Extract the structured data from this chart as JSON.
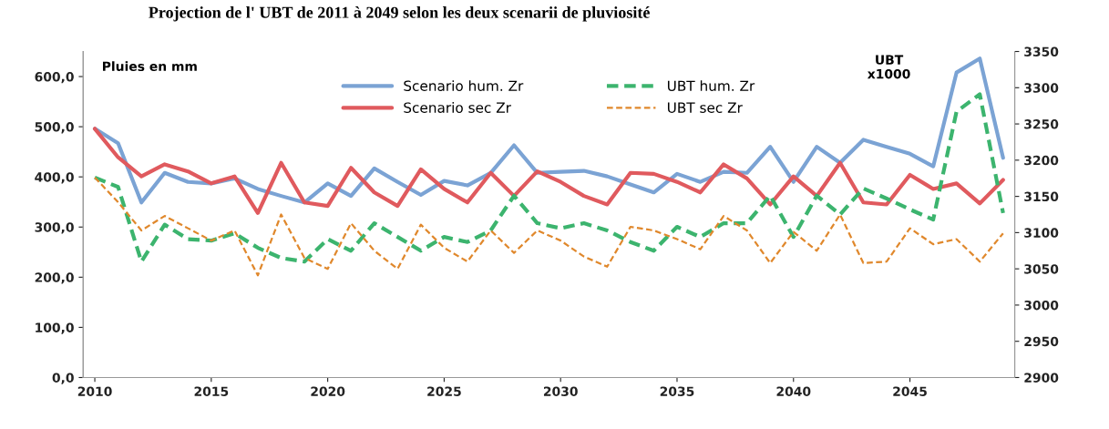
{
  "chart_data": {
    "type": "line",
    "title": "Projection de l' UBT de 2011 à 2049 selon les deux scenarii de pluviosité",
    "ylabel": "Pluies en mm",
    "y2label": "UBT\nx1000",
    "x": [
      2010,
      2011,
      2012,
      2013,
      2014,
      2015,
      2016,
      2017,
      2018,
      2019,
      2020,
      2021,
      2022,
      2023,
      2024,
      2025,
      2026,
      2027,
      2028,
      2029,
      2030,
      2031,
      2032,
      2033,
      2034,
      2035,
      2036,
      2037,
      2038,
      2039,
      2040,
      2041,
      2042,
      2043,
      2044,
      2045,
      2046,
      2047,
      2048,
      2049
    ],
    "series": [
      {
        "name": "Scenario hum. Zr",
        "color": "#7ba3d4",
        "line_style": "solid",
        "values": [
          496,
          467,
          349,
          408,
          390,
          387,
          397,
          376,
          362,
          349,
          387,
          362,
          417,
          390,
          364,
          392,
          383,
          408,
          463,
          408,
          410,
          412,
          401,
          385,
          369,
          406,
          390,
          410,
          408,
          460,
          390,
          460,
          428,
          474,
          460,
          446,
          421,
          608,
          636,
          438
        ]
      },
      {
        "name": "Scenario sec Zr",
        "color": "#e05a5e",
        "line_style": "solid",
        "values": [
          496,
          439,
          401,
          425,
          411,
          387,
          401,
          328,
          428,
          349,
          342,
          418,
          369,
          342,
          415,
          376,
          349,
          408,
          362,
          411,
          390,
          362,
          345,
          408,
          406,
          390,
          369,
          425,
          397,
          345,
          401,
          362,
          428,
          349,
          345,
          404,
          376,
          387,
          347,
          394
        ]
      },
      {
        "name": "UBT hum. Zr",
        "color": "#3cb46e",
        "line_style": "dashed",
        "axis": "y2",
        "values": [
          3176,
          3163,
          3060,
          3111,
          3091,
          3089,
          3099,
          3079,
          3065,
          3060,
          3091,
          3075,
          3113,
          3094,
          3075,
          3094,
          3087,
          3103,
          3151,
          3113,
          3106,
          3113,
          3103,
          3087,
          3075,
          3108,
          3094,
          3113,
          3113,
          3151,
          3094,
          3151,
          3125,
          3161,
          3147,
          3132,
          3118,
          3267,
          3291,
          3127
        ]
      },
      {
        "name": "UBT sec Zr",
        "color": "#e0882c",
        "line_style": "dashed",
        "axis": "y2",
        "values": [
          3176,
          3142,
          3103,
          3123,
          3106,
          3089,
          3103,
          3041,
          3125,
          3065,
          3050,
          3113,
          3075,
          3050,
          3111,
          3079,
          3060,
          3103,
          3072,
          3103,
          3089,
          3067,
          3053,
          3108,
          3103,
          3091,
          3077,
          3123,
          3103,
          3058,
          3101,
          3075,
          3125,
          3058,
          3060,
          3106,
          3084,
          3091,
          3060,
          3099
        ]
      }
    ],
    "xlim": [
      2009.5,
      2049.5
    ],
    "xticks": [
      2010,
      2015,
      2020,
      2025,
      2030,
      2035,
      2040,
      2045
    ],
    "ylim": [
      0,
      650
    ],
    "yticks": [
      {
        "value": 0,
        "label": "0,0"
      },
      {
        "value": 100,
        "label": "100,0"
      },
      {
        "value": 200,
        "label": "200,0"
      },
      {
        "value": 300,
        "label": "300,0"
      },
      {
        "value": 400,
        "label": "400,0"
      },
      {
        "value": 500,
        "label": "500,0"
      },
      {
        "value": 600,
        "label": "600,0"
      }
    ],
    "y2lim": [
      2900,
      3350
    ],
    "y2ticks": [
      2900,
      2950,
      3000,
      3050,
      3100,
      3150,
      3200,
      3250,
      3300,
      3350
    ],
    "grid": false,
    "legend": "top",
    "marker": "none"
  }
}
